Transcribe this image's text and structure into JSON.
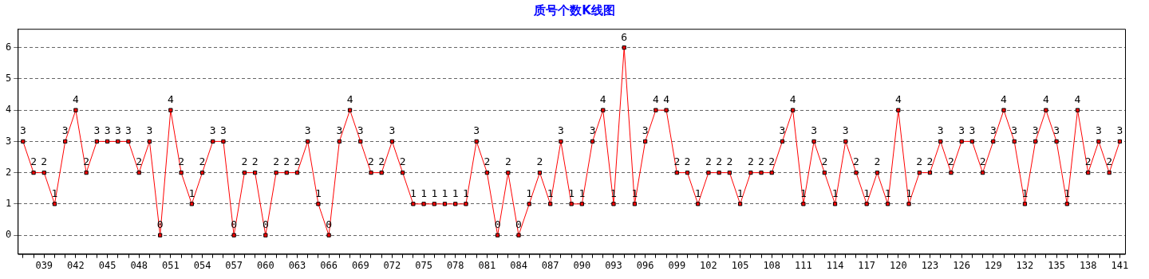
{
  "chart_data": {
    "type": "line",
    "title": "质号个数K线图",
    "categories": [
      null,
      null,
      "039",
      null,
      null,
      "042",
      null,
      null,
      "045",
      null,
      null,
      "048",
      null,
      null,
      "051",
      null,
      null,
      "054",
      null,
      null,
      "057",
      null,
      null,
      "060",
      null,
      null,
      "063",
      null,
      null,
      "066",
      null,
      null,
      "069",
      null,
      null,
      "072",
      null,
      null,
      "075",
      null,
      null,
      "078",
      null,
      null,
      "081",
      null,
      null,
      "084",
      null,
      null,
      "087",
      null,
      null,
      "090",
      null,
      null,
      "093",
      null,
      null,
      "096",
      null,
      null,
      "099",
      null,
      null,
      "102",
      null,
      null,
      "105",
      null,
      null,
      "108",
      null,
      null,
      "111",
      null,
      null,
      "114",
      null,
      null,
      "117",
      null,
      null,
      "120",
      null,
      null,
      "123",
      null,
      null,
      "126",
      null,
      null,
      "129",
      null,
      null,
      "132",
      null,
      null,
      "135",
      null,
      null,
      "138",
      null,
      null,
      "141"
    ],
    "series": [
      {
        "color": "#ff0000",
        "values": [
          3,
          2,
          2,
          1,
          3,
          4,
          2,
          3,
          3,
          3,
          3,
          2,
          3,
          0,
          4,
          2,
          1,
          2,
          3,
          3,
          0,
          2,
          2,
          0,
          2,
          2,
          2,
          3,
          1,
          0,
          3,
          4,
          3,
          2,
          2,
          3,
          2,
          1,
          1,
          1,
          1,
          1,
          1,
          3,
          2,
          0,
          2,
          0,
          1,
          2,
          1,
          3,
          1,
          1,
          3,
          4,
          1,
          6,
          1,
          3,
          4,
          4,
          2,
          2,
          1,
          2,
          2,
          2,
          1,
          2,
          2,
          2,
          3,
          4,
          1,
          3,
          2,
          1,
          3,
          2,
          1,
          2,
          1,
          4,
          1,
          2,
          2,
          3,
          2,
          3,
          3,
          2,
          3,
          4,
          3,
          1,
          3,
          4,
          3,
          1,
          4,
          2,
          3,
          2,
          3
        ]
      }
    ],
    "data_labels": true,
    "ylim": [
      -0.6,
      6.6
    ],
    "yticks": [
      0,
      1,
      2,
      3,
      4,
      5,
      6
    ],
    "grid": "y",
    "legend": false,
    "marker": "square",
    "line_style": "solid"
  }
}
